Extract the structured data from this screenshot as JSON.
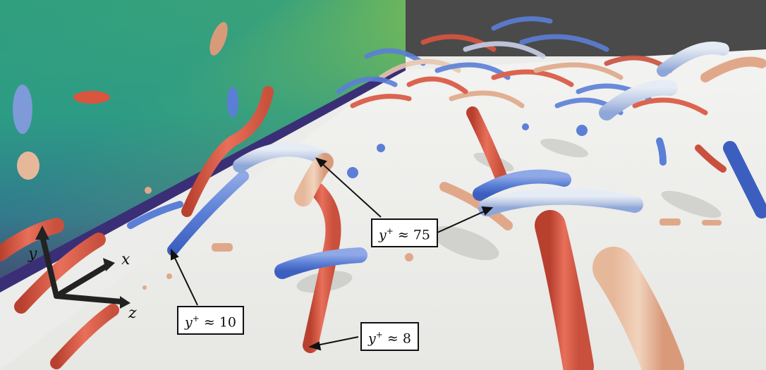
{
  "annotations": {
    "label_75": {
      "var": "y",
      "sup": "+",
      "rel": "≈",
      "value": "75"
    },
    "label_10": {
      "var": "y",
      "sup": "+",
      "rel": "≈",
      "value": "10"
    },
    "label_8": {
      "var": "y",
      "sup": "+",
      "rel": "≈",
      "value": "8"
    }
  },
  "axes": {
    "x": "x",
    "y": "y",
    "z": "z"
  },
  "colors": {
    "sky": "#4a4a4a",
    "floor": "#ececea",
    "wall_dark": "#3b2a6b",
    "wall_green": "#3ea87a",
    "wall_yellow": "#c9d83a",
    "vortex_red": "#d9553f",
    "vortex_blue": "#5b7fd6"
  }
}
